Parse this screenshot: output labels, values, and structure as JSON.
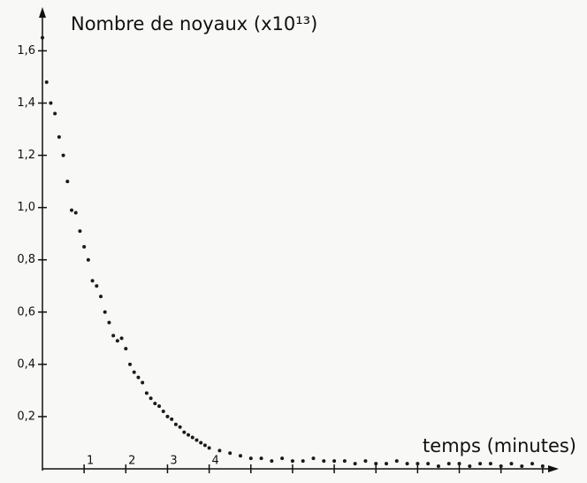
{
  "chart_data": {
    "type": "scatter",
    "ylabel": "Nombre de noyaux (x10¹³)",
    "xlabel": "temps (minutes)",
    "color": "#1a1a1a",
    "xlim": [
      0,
      12.3
    ],
    "ylim": [
      0,
      1.72
    ],
    "xticks": [
      1,
      2,
      3,
      4
    ],
    "xminor_ticks": [
      5,
      6,
      7,
      8,
      9,
      10,
      11,
      12
    ],
    "yticks": [
      {
        "value": 0.2,
        "label": "0,2"
      },
      {
        "value": 0.4,
        "label": "0,4"
      },
      {
        "value": 0.6,
        "label": "0,6"
      },
      {
        "value": 0.8,
        "label": "0,8"
      },
      {
        "value": 1.0,
        "label": "1,0"
      },
      {
        "value": 1.2,
        "label": "1,2"
      },
      {
        "value": 1.4,
        "label": "1,4"
      },
      {
        "value": 1.6,
        "label": "1,6"
      }
    ],
    "x": [
      0,
      0.1,
      0.2,
      0.3,
      0.4,
      0.5,
      0.6,
      0.7,
      0.8,
      0.9,
      1.0,
      1.1,
      1.2,
      1.3,
      1.4,
      1.5,
      1.6,
      1.7,
      1.8,
      1.9,
      2.0,
      2.1,
      2.2,
      2.3,
      2.4,
      2.5,
      2.6,
      2.7,
      2.8,
      2.9,
      3.0,
      3.1,
      3.2,
      3.3,
      3.4,
      3.5,
      3.6,
      3.7,
      3.8,
      3.9,
      4.0,
      4.25,
      4.5,
      4.75,
      5.0,
      5.25,
      5.5,
      5.75,
      6.0,
      6.25,
      6.5,
      6.75,
      7.0,
      7.25,
      7.5,
      7.75,
      8.0,
      8.25,
      8.5,
      8.75,
      9.0,
      9.25,
      9.5,
      9.75,
      10.0,
      10.25,
      10.5,
      10.75,
      11.0,
      11.25,
      11.5,
      11.75,
      12.0
    ],
    "values": [
      1.65,
      1.48,
      1.4,
      1.36,
      1.27,
      1.2,
      1.1,
      0.99,
      0.98,
      0.91,
      0.85,
      0.8,
      0.72,
      0.7,
      0.66,
      0.6,
      0.56,
      0.51,
      0.49,
      0.5,
      0.46,
      0.4,
      0.37,
      0.35,
      0.33,
      0.29,
      0.27,
      0.25,
      0.24,
      0.22,
      0.2,
      0.19,
      0.17,
      0.16,
      0.14,
      0.13,
      0.12,
      0.11,
      0.1,
      0.09,
      0.08,
      0.07,
      0.06,
      0.05,
      0.04,
      0.04,
      0.03,
      0.04,
      0.03,
      0.03,
      0.04,
      0.03,
      0.03,
      0.03,
      0.02,
      0.03,
      0.02,
      0.02,
      0.03,
      0.02,
      0.02,
      0.02,
      0.01,
      0.02,
      0.02,
      0.01,
      0.02,
      0.02,
      0.01,
      0.02,
      0.01,
      0.02,
      0.01
    ]
  }
}
